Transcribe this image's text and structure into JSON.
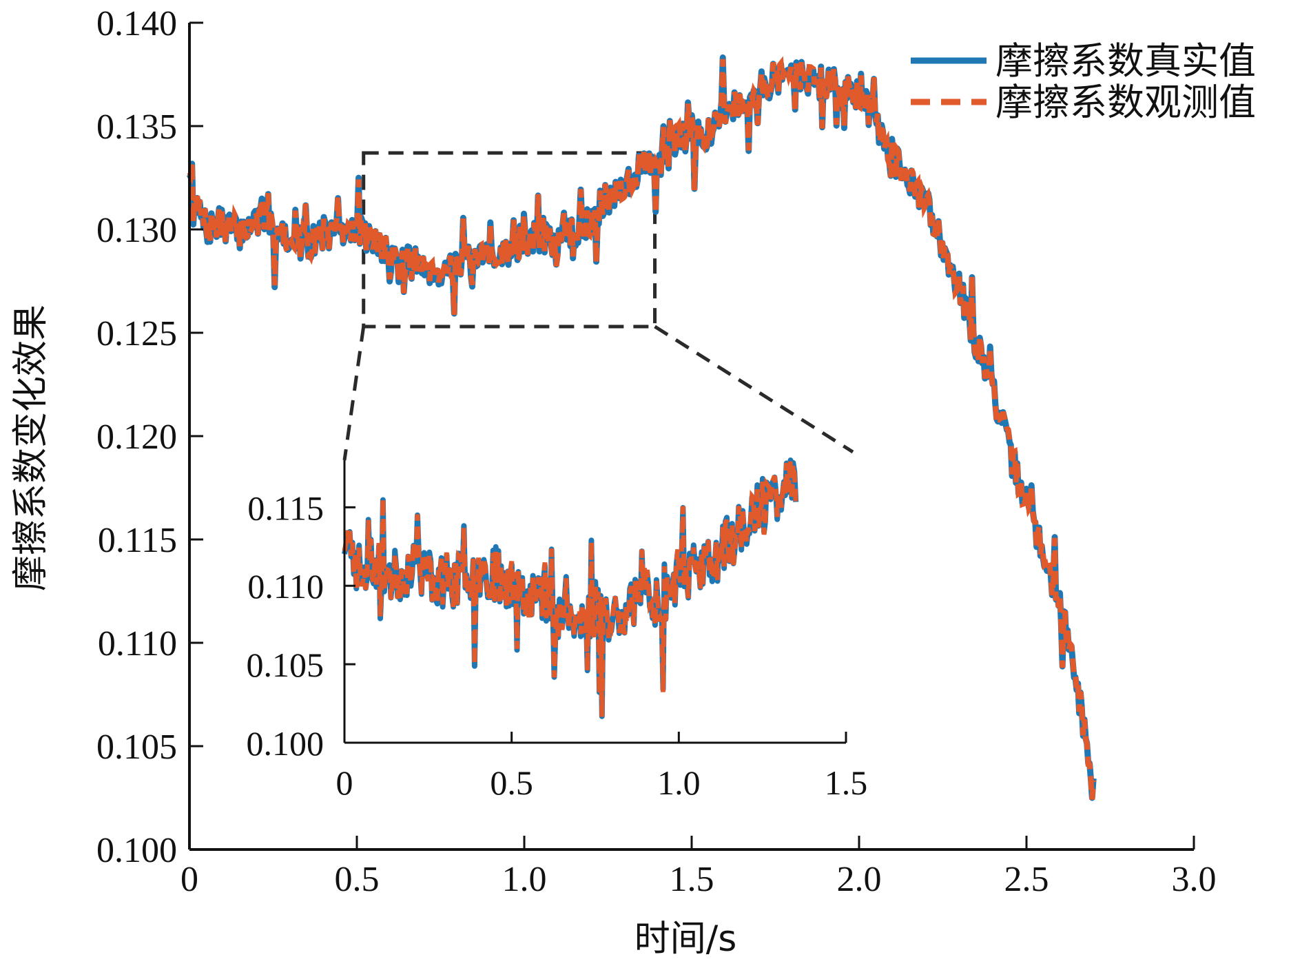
{
  "chart_data": {
    "type": "line",
    "title": "",
    "xlabel": "时间/s",
    "ylabel": "摩擦系数变化效果",
    "xlim": [
      0,
      3.0
    ],
    "ylim": [
      0.1,
      0.14
    ],
    "xticks": [
      0,
      0.5,
      1.0,
      1.5,
      2.0,
      2.5,
      3.0
    ],
    "xtick_labels": [
      "0",
      "0.5",
      "1.0",
      "1.5",
      "2.0",
      "2.5",
      "3.0"
    ],
    "yticks": [
      0.1,
      0.105,
      0.11,
      0.115,
      0.12,
      0.125,
      0.13,
      0.135,
      0.14
    ],
    "ytick_labels": [
      "0.100",
      "0.105",
      "0.110",
      "0.115",
      "0.120",
      "0.125",
      "0.130",
      "0.135",
      "0.140"
    ],
    "grid": false,
    "legend_position": "top-right",
    "series": [
      {
        "name": "摩擦系数真实值",
        "color": "#1f77b4",
        "style": "solid",
        "x": [
          0,
          0.05,
          0.1,
          0.15,
          0.2,
          0.25,
          0.3,
          0.35,
          0.4,
          0.45,
          0.5,
          0.55,
          0.6,
          0.65,
          0.7,
          0.75,
          0.8,
          0.85,
          0.9,
          0.95,
          1.0,
          1.05,
          1.1,
          1.15,
          1.2,
          1.25,
          1.3,
          1.35,
          1.4,
          1.45,
          1.5,
          1.55,
          1.6,
          1.65,
          1.7,
          1.75,
          1.8,
          1.85,
          1.9,
          1.95,
          2.0,
          2.05,
          2.1,
          2.15,
          2.2,
          2.25,
          2.3,
          2.35,
          2.4,
          2.45,
          2.5,
          2.55,
          2.6,
          2.65,
          2.7
        ],
        "values": [
          0.132,
          0.13,
          0.1303,
          0.1298,
          0.1305,
          0.1302,
          0.1296,
          0.1292,
          0.1299,
          0.1296,
          0.1302,
          0.1294,
          0.1287,
          0.1284,
          0.1283,
          0.1279,
          0.1285,
          0.1283,
          0.1288,
          0.1289,
          0.1296,
          0.1295,
          0.1294,
          0.1298,
          0.1306,
          0.1315,
          0.1322,
          0.133,
          0.133,
          0.1342,
          0.1348,
          0.1346,
          0.1358,
          0.1362,
          0.1368,
          0.1373,
          0.1376,
          0.1373,
          0.137,
          0.1367,
          0.1365,
          0.1352,
          0.1336,
          0.1322,
          0.1313,
          0.1293,
          0.1272,
          0.1245,
          0.1222,
          0.1192,
          0.1168,
          0.1142,
          0.1118,
          0.1082,
          0.1028
        ]
      },
      {
        "name": "摩擦系数观测值",
        "color": "#e05a2b",
        "style": "dashed",
        "x": [
          0,
          0.05,
          0.1,
          0.15,
          0.2,
          0.25,
          0.3,
          0.35,
          0.4,
          0.45,
          0.5,
          0.55,
          0.6,
          0.65,
          0.7,
          0.75,
          0.8,
          0.85,
          0.9,
          0.95,
          1.0,
          1.05,
          1.1,
          1.15,
          1.2,
          1.25,
          1.3,
          1.35,
          1.4,
          1.45,
          1.5,
          1.55,
          1.6,
          1.65,
          1.7,
          1.75,
          1.8,
          1.85,
          1.9,
          1.95,
          2.0,
          2.05,
          2.1,
          2.15,
          2.2,
          2.25,
          2.3,
          2.35,
          2.4,
          2.45,
          2.5,
          2.55,
          2.6,
          2.65,
          2.7
        ],
        "values": [
          0.1321,
          0.1301,
          0.1302,
          0.1299,
          0.1304,
          0.1303,
          0.1295,
          0.1293,
          0.1298,
          0.1297,
          0.1301,
          0.1295,
          0.1288,
          0.1283,
          0.1284,
          0.128,
          0.1284,
          0.1284,
          0.1287,
          0.129,
          0.1295,
          0.1296,
          0.1293,
          0.1299,
          0.1305,
          0.1316,
          0.1321,
          0.1331,
          0.1329,
          0.1343,
          0.1347,
          0.1347,
          0.1357,
          0.1363,
          0.1367,
          0.1374,
          0.1375,
          0.1374,
          0.1369,
          0.1368,
          0.1364,
          0.1353,
          0.1335,
          0.1323,
          0.1312,
          0.1294,
          0.1271,
          0.1246,
          0.1221,
          0.1193,
          0.1167,
          0.1143,
          0.1117,
          0.1083,
          0.1027
        ]
      }
    ],
    "inset": {
      "xlim": [
        0,
        1.5
      ],
      "ylim": [
        0.1,
        0.118
      ],
      "xticks": [
        0,
        0.5,
        1.0,
        1.5
      ],
      "xtick_labels": [
        "0",
        "0.5",
        "1.0",
        "1.5"
      ],
      "yticks": [
        0.1,
        0.105,
        0.11,
        0.115
      ],
      "ytick_labels": [
        "0.100",
        "0.105",
        "0.110",
        "0.115"
      ],
      "zoom_region_x": [
        0.52,
        1.39
      ],
      "zoom_region_y": [
        0.1253,
        0.1337
      ],
      "x": [
        0,
        0.05,
        0.1,
        0.15,
        0.2,
        0.25,
        0.3,
        0.35,
        0.4,
        0.45,
        0.5,
        0.55,
        0.6,
        0.65,
        0.7,
        0.75,
        0.8,
        0.85,
        0.9,
        0.95,
        1.0,
        1.05,
        1.1,
        1.15,
        1.2,
        1.25,
        1.3,
        1.35
      ],
      "values": [
        0.1125,
        0.111,
        0.1115,
        0.1105,
        0.1112,
        0.1108,
        0.1102,
        0.1105,
        0.111,
        0.1108,
        0.1102,
        0.1098,
        0.109,
        0.1082,
        0.1075,
        0.1085,
        0.1078,
        0.109,
        0.1095,
        0.109,
        0.1105,
        0.111,
        0.1115,
        0.1128,
        0.114,
        0.115,
        0.116,
        0.117
      ],
      "observed_values": [
        0.1127,
        0.1108,
        0.1117,
        0.1103,
        0.1114,
        0.1106,
        0.1104,
        0.1103,
        0.1112,
        0.1106,
        0.1104,
        0.1096,
        0.1092,
        0.108,
        0.1077,
        0.1083,
        0.108,
        0.1088,
        0.1097,
        0.1088,
        0.1107,
        0.1108,
        0.1117,
        0.1126,
        0.1142,
        0.1148,
        0.1162,
        0.1168
      ]
    }
  }
}
